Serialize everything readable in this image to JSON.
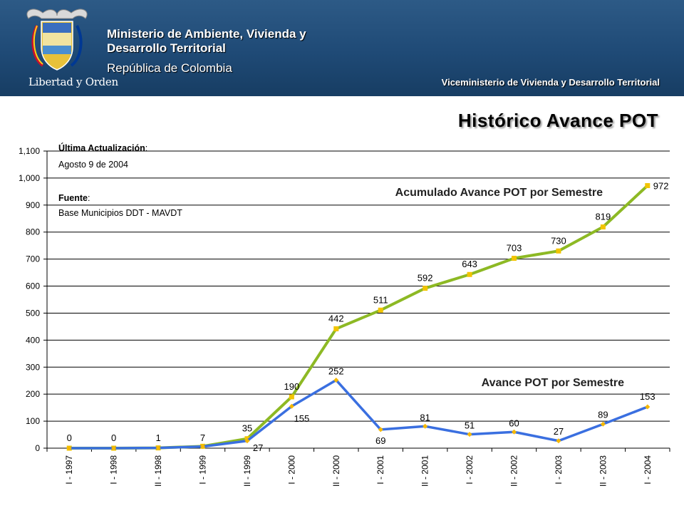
{
  "header": {
    "ministry_line1": "Ministerio de Ambiente, Vivienda y",
    "ministry_line2": "Desarrollo Territorial",
    "republic": "República de Colombia",
    "motto": "Libertad y Orden",
    "viceministry": "Viceministerio de Vivienda y Desarrollo Territorial"
  },
  "slide_title": "Histórico Avance POT",
  "notes": {
    "update_label": "Última Actualización",
    "update_colon": ":",
    "update_value": "Agosto 9 de 2004",
    "source_label": "Fuente",
    "source_colon": ":",
    "source_value": "Base Municipios DDT - MAVDT"
  },
  "colors": {
    "cumulative": "#8db924",
    "cumulative_marker": "#f2c400",
    "semester": "#3a6fe0",
    "semester_marker": "#f5b800",
    "header_bg": "#1f4a76"
  },
  "chart_data": {
    "type": "line",
    "title": "",
    "xlabel": "",
    "ylabel": "",
    "ylim": [
      0,
      1100
    ],
    "yticks": [
      0,
      100,
      200,
      300,
      400,
      500,
      600,
      700,
      800,
      900,
      1000,
      1100
    ],
    "ytick_labels": [
      "0",
      "100",
      "200",
      "300",
      "400",
      "500",
      "600",
      "700",
      "800",
      "900",
      "1,000",
      "1,100"
    ],
    "grid": "horizontal",
    "categories": [
      "I - 1997",
      "I - 1998",
      "II - 1998",
      "I - 1999",
      "II - 1999",
      "I - 2000",
      "II - 2000",
      "I - 2001",
      "II - 2001",
      "I - 2002",
      "II - 2002",
      "I - 2003",
      "II - 2003",
      "I - 2004"
    ],
    "series": [
      {
        "name": "Acumulado Avance POT por Semestre",
        "values": [
          0,
          0,
          1,
          7,
          35,
          190,
          442,
          511,
          592,
          643,
          703,
          730,
          819,
          972
        ]
      },
      {
        "name": "Avance POT por Semestre",
        "values": [
          0,
          0,
          1,
          6,
          27,
          155,
          252,
          69,
          81,
          51,
          60,
          27,
          89,
          153
        ]
      }
    ],
    "data_labels": [
      [
        "0",
        "0",
        "1",
        "7",
        "35",
        "190",
        "442",
        "511",
        "592",
        "643",
        "703",
        "730",
        "819",
        "972"
      ],
      [
        "",
        "",
        "",
        "",
        "27",
        "155",
        "252",
        "69",
        "81",
        "51",
        "60",
        "27",
        "89",
        "153"
      ]
    ]
  }
}
